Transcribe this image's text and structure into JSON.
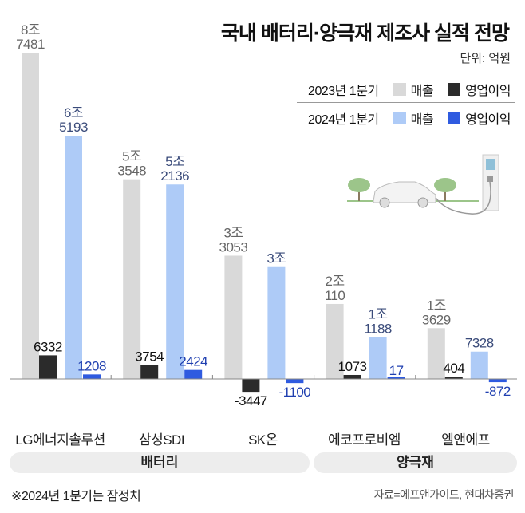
{
  "title": "국내 배터리·양극재 제조사 실적 전망",
  "unit": "단위: 억원",
  "legend": {
    "rows": [
      {
        "period": "2023년 1분기",
        "sales": "매출",
        "profit": "영업이익",
        "sales_color": "#d9d9d9",
        "profit_color": "#2b2b2b"
      },
      {
        "period": "2024년 1분기",
        "sales": "매출",
        "profit": "영업이익",
        "sales_color": "#aecbf7",
        "profit_color": "#2f5be0"
      }
    ]
  },
  "chart_data": {
    "type": "bar",
    "categories": [
      "LG에너지솔루션",
      "삼성SDI",
      "SK온",
      "에코프로비엠",
      "엘앤에프"
    ],
    "groups": [
      {
        "label": "배터리",
        "categories": [
          "LG에너지솔루션",
          "삼성SDI",
          "SK온"
        ]
      },
      {
        "label": "양극재",
        "categories": [
          "에코프로비엠",
          "엘앤에프"
        ]
      }
    ],
    "series": [
      {
        "name": "2023년 1분기 매출",
        "color": "#d9d9d9",
        "label_color": "#666666",
        "values": [
          87481,
          53548,
          33053,
          20110,
          13629
        ],
        "labels": [
          [
            "8조",
            "7481"
          ],
          [
            "5조",
            "3548"
          ],
          [
            "3조",
            "3053"
          ],
          [
            "2조",
            "110"
          ],
          [
            "1조",
            "3629"
          ]
        ]
      },
      {
        "name": "2023년 1분기 영업이익",
        "color": "#2b2b2b",
        "label_color": "#111111",
        "values": [
          6332,
          3754,
          -3447,
          1073,
          404
        ],
        "labels": [
          [
            "6332"
          ],
          [
            "3754"
          ],
          [
            "-3447"
          ],
          [
            "1073"
          ],
          [
            "404"
          ]
        ]
      },
      {
        "name": "2024년 1분기 매출",
        "color": "#aecbf7",
        "label_color": "#3a4b7a",
        "values": [
          65193,
          52136,
          30000,
          11188,
          7328
        ],
        "labels": [
          [
            "6조",
            "5193"
          ],
          [
            "5조",
            "2136"
          ],
          [
            "3조"
          ],
          [
            "1조",
            "1188"
          ],
          [
            "7328"
          ]
        ]
      },
      {
        "name": "2024년 1분기 영업이익",
        "color": "#2f5be0",
        "label_color": "#1f3fb0",
        "values": [
          1208,
          2424,
          -1100,
          17,
          -872
        ],
        "labels": [
          [
            "1208"
          ],
          [
            "2424"
          ],
          [
            "-1100"
          ],
          [
            "17"
          ],
          [
            "-872"
          ]
        ]
      }
    ],
    "unit": "억원",
    "grid": false
  },
  "footnote": "※2024년 1분기는 잠정치",
  "source": "자료=에프앤가이드, 현대차증권"
}
